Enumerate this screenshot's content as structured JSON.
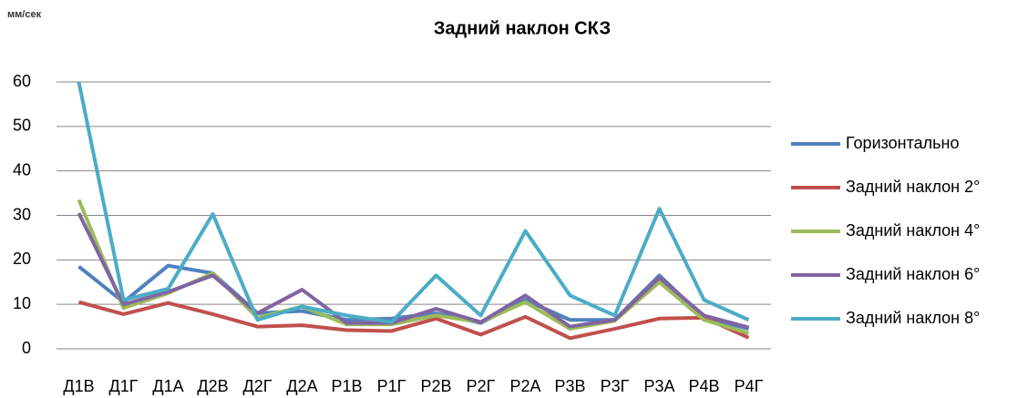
{
  "chart_data": {
    "type": "line",
    "title": "Задний наклон СКЗ",
    "unit_label": "мм/сек",
    "categories": [
      "Д1В",
      "Д1Г",
      "Д1А",
      "Д2В",
      "Д2Г",
      "Д2А",
      "Р1В",
      "Р1Г",
      "Р2В",
      "Р2Г",
      "Р2А",
      "Р3В",
      "Р3Г",
      "Р3А",
      "Р4В",
      "Р4Г"
    ],
    "series": [
      {
        "name": "Горизонтально",
        "color": "#4f81bd",
        "values": [
          18.5,
          10.5,
          18.7,
          17,
          8,
          8.5,
          6.5,
          6.8,
          8,
          5.8,
          11,
          6.5,
          6.5,
          16.5,
          7,
          4.5
        ]
      },
      {
        "name": "Задний наклон 2°",
        "color": "#c0504d",
        "values": [
          10.5,
          7.8,
          10.3,
          7.8,
          5,
          5.3,
          4.2,
          4,
          6.8,
          3.2,
          7.2,
          2.4,
          4.5,
          6.8,
          7,
          2.5
        ]
      },
      {
        "name": "Задний наклон 4°",
        "color": "#9bbb59",
        "values": [
          33.5,
          9.2,
          12.5,
          17,
          7,
          9.5,
          5.5,
          5.5,
          7.5,
          6,
          10.5,
          4.5,
          6.3,
          15,
          6.5,
          3.5
        ]
      },
      {
        "name": "Задний наклон 6°",
        "color": "#8064a2",
        "values": [
          30.5,
          10,
          12.8,
          16.5,
          8,
          13.3,
          5.8,
          5.8,
          9,
          6,
          12,
          5,
          6.5,
          16,
          7.5,
          4.8
        ]
      },
      {
        "name": "Задний наклон 8°",
        "color": "#4bacc6",
        "values": [
          60,
          11,
          13.5,
          30.3,
          6.5,
          9.5,
          7.5,
          6,
          16.5,
          7.5,
          26.5,
          12,
          7.5,
          31.5,
          11,
          6.5
        ]
      }
    ],
    "ylim": [
      0,
      60
    ],
    "yticks": [
      0,
      10,
      20,
      30,
      40,
      50,
      60
    ],
    "grid": true,
    "legend": "right"
  }
}
